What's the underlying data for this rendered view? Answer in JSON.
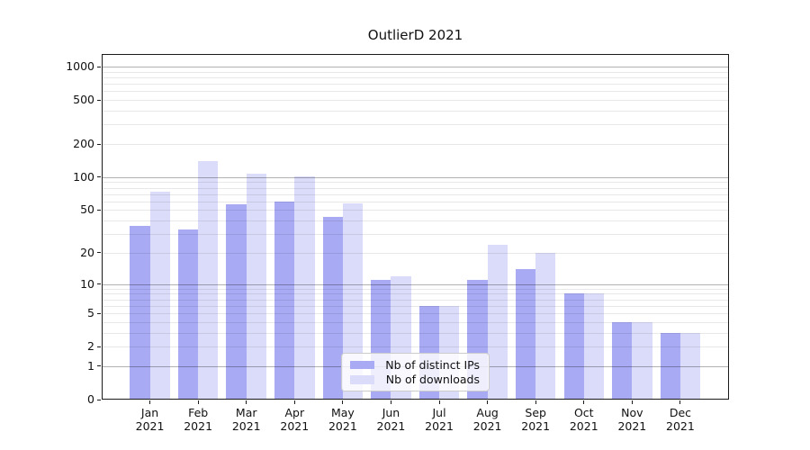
{
  "title": "OutlierD 2021",
  "chart_data": {
    "type": "bar",
    "title": "OutlierD 2021",
    "categories": [
      "Jan",
      "Feb",
      "Mar",
      "Apr",
      "May",
      "Jun",
      "Jul",
      "Aug",
      "Sep",
      "Oct",
      "Nov",
      "Dec"
    ],
    "category_year": "2021",
    "series": [
      {
        "name": "Nb of distinct IPs",
        "color": "#a8aaf4",
        "values": [
          36,
          33,
          56,
          60,
          43,
          11,
          6,
          11,
          14,
          8,
          4,
          3
        ]
      },
      {
        "name": "Nb of downloads",
        "color": "#dbdcf9",
        "values": [
          74,
          140,
          108,
          102,
          58,
          12,
          6,
          24,
          20,
          8,
          4,
          3
        ]
      }
    ],
    "yscale": "log1p",
    "ylim": [
      0,
      1300
    ],
    "yticks": [
      0,
      1,
      2,
      5,
      10,
      20,
      50,
      100,
      200,
      500,
      1000
    ],
    "major_gridlines": [
      1,
      10,
      100,
      1000
    ],
    "minor_gridlines": [
      2,
      3,
      4,
      5,
      6,
      7,
      8,
      9,
      20,
      30,
      40,
      50,
      60,
      70,
      80,
      90,
      200,
      300,
      400,
      500,
      600,
      700,
      800,
      900
    ],
    "grid": true,
    "xlabel": "",
    "ylabel": "",
    "legend": {
      "position": "lower center",
      "entries": [
        "Nb of distinct IPs",
        "Nb of downloads"
      ]
    }
  },
  "colors": {
    "major_grid": "rgba(0,0,0,0.30)",
    "minor_grid": "rgba(0,0,0,0.09)",
    "axis": "#1a1a1a",
    "background": "#ffffff"
  }
}
